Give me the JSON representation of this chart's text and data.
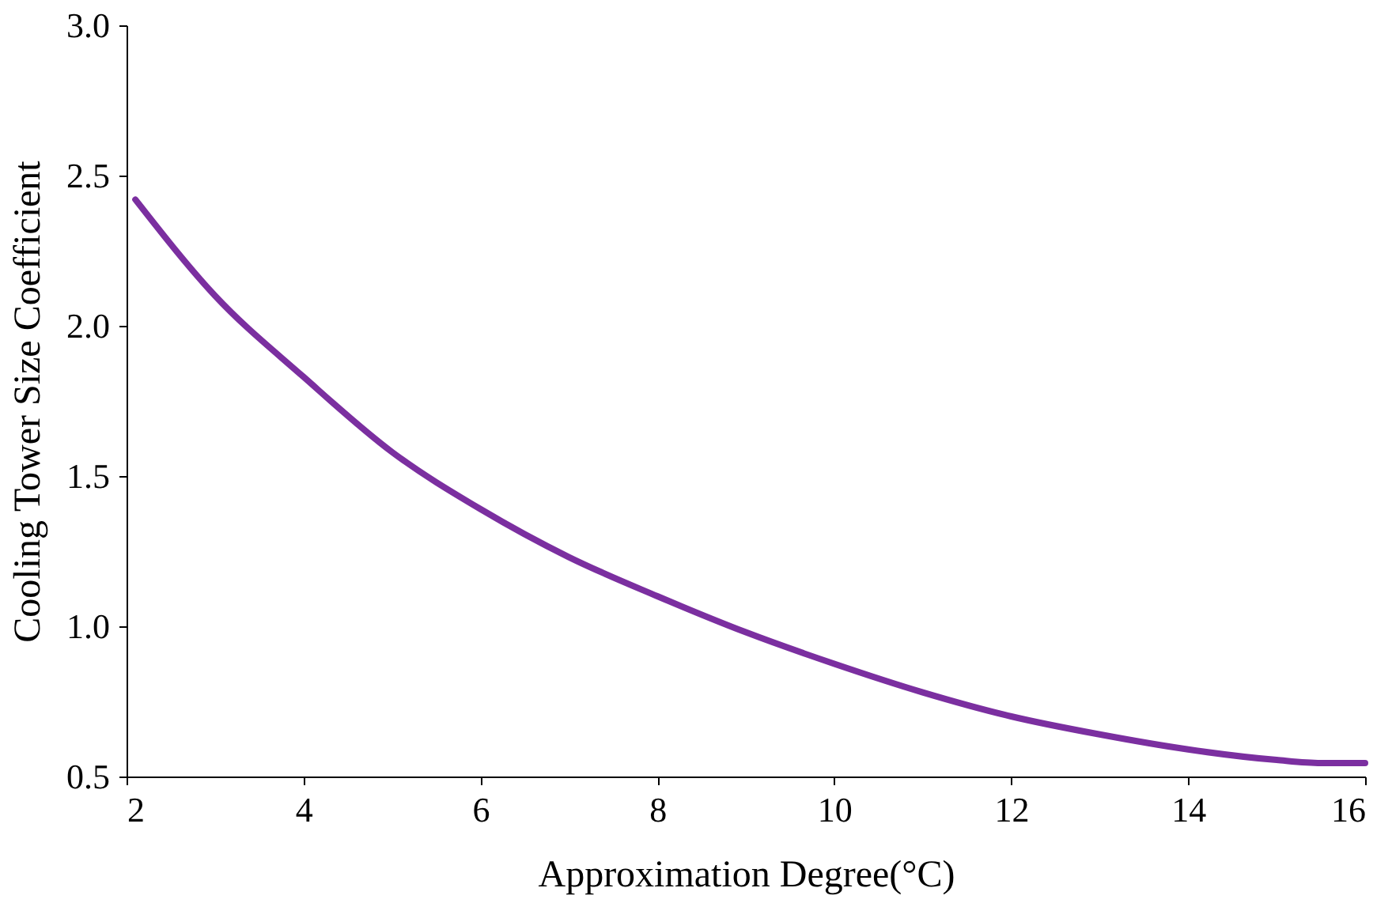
{
  "chart_data": {
    "type": "line",
    "xlabel": "Approximation Degree(°C)",
    "ylabel": "Cooling Tower Size Coefficient",
    "x": [
      2.1,
      3,
      4,
      5,
      6,
      7,
      8,
      9,
      10,
      11,
      12,
      13,
      14,
      15,
      15.5,
      16
    ],
    "series": [
      {
        "color": "#7b2fa0",
        "values": [
          2.42,
          2.1,
          1.83,
          1.58,
          1.39,
          1.23,
          1.1,
          0.98,
          0.875,
          0.78,
          0.7,
          0.64,
          0.59,
          0.555,
          0.545,
          0.545
        ]
      }
    ],
    "xlim": [
      2,
      16
    ],
    "xticks": [
      2,
      4,
      6,
      8,
      10,
      12,
      14,
      16
    ],
    "ylim": [
      0.5,
      3.0
    ],
    "yticks": [
      {
        "value": 0.5,
        "label": "0.5"
      },
      {
        "value": 1.0,
        "label": "1.0"
      },
      {
        "value": 1.5,
        "label": "1.5"
      },
      {
        "value": 2.0,
        "label": "2.0"
      },
      {
        "value": 2.5,
        "label": "2.5"
      },
      {
        "value": 3.0,
        "label": "3.0"
      }
    ],
    "grid": false,
    "marker": "none",
    "line_style": "solid"
  }
}
